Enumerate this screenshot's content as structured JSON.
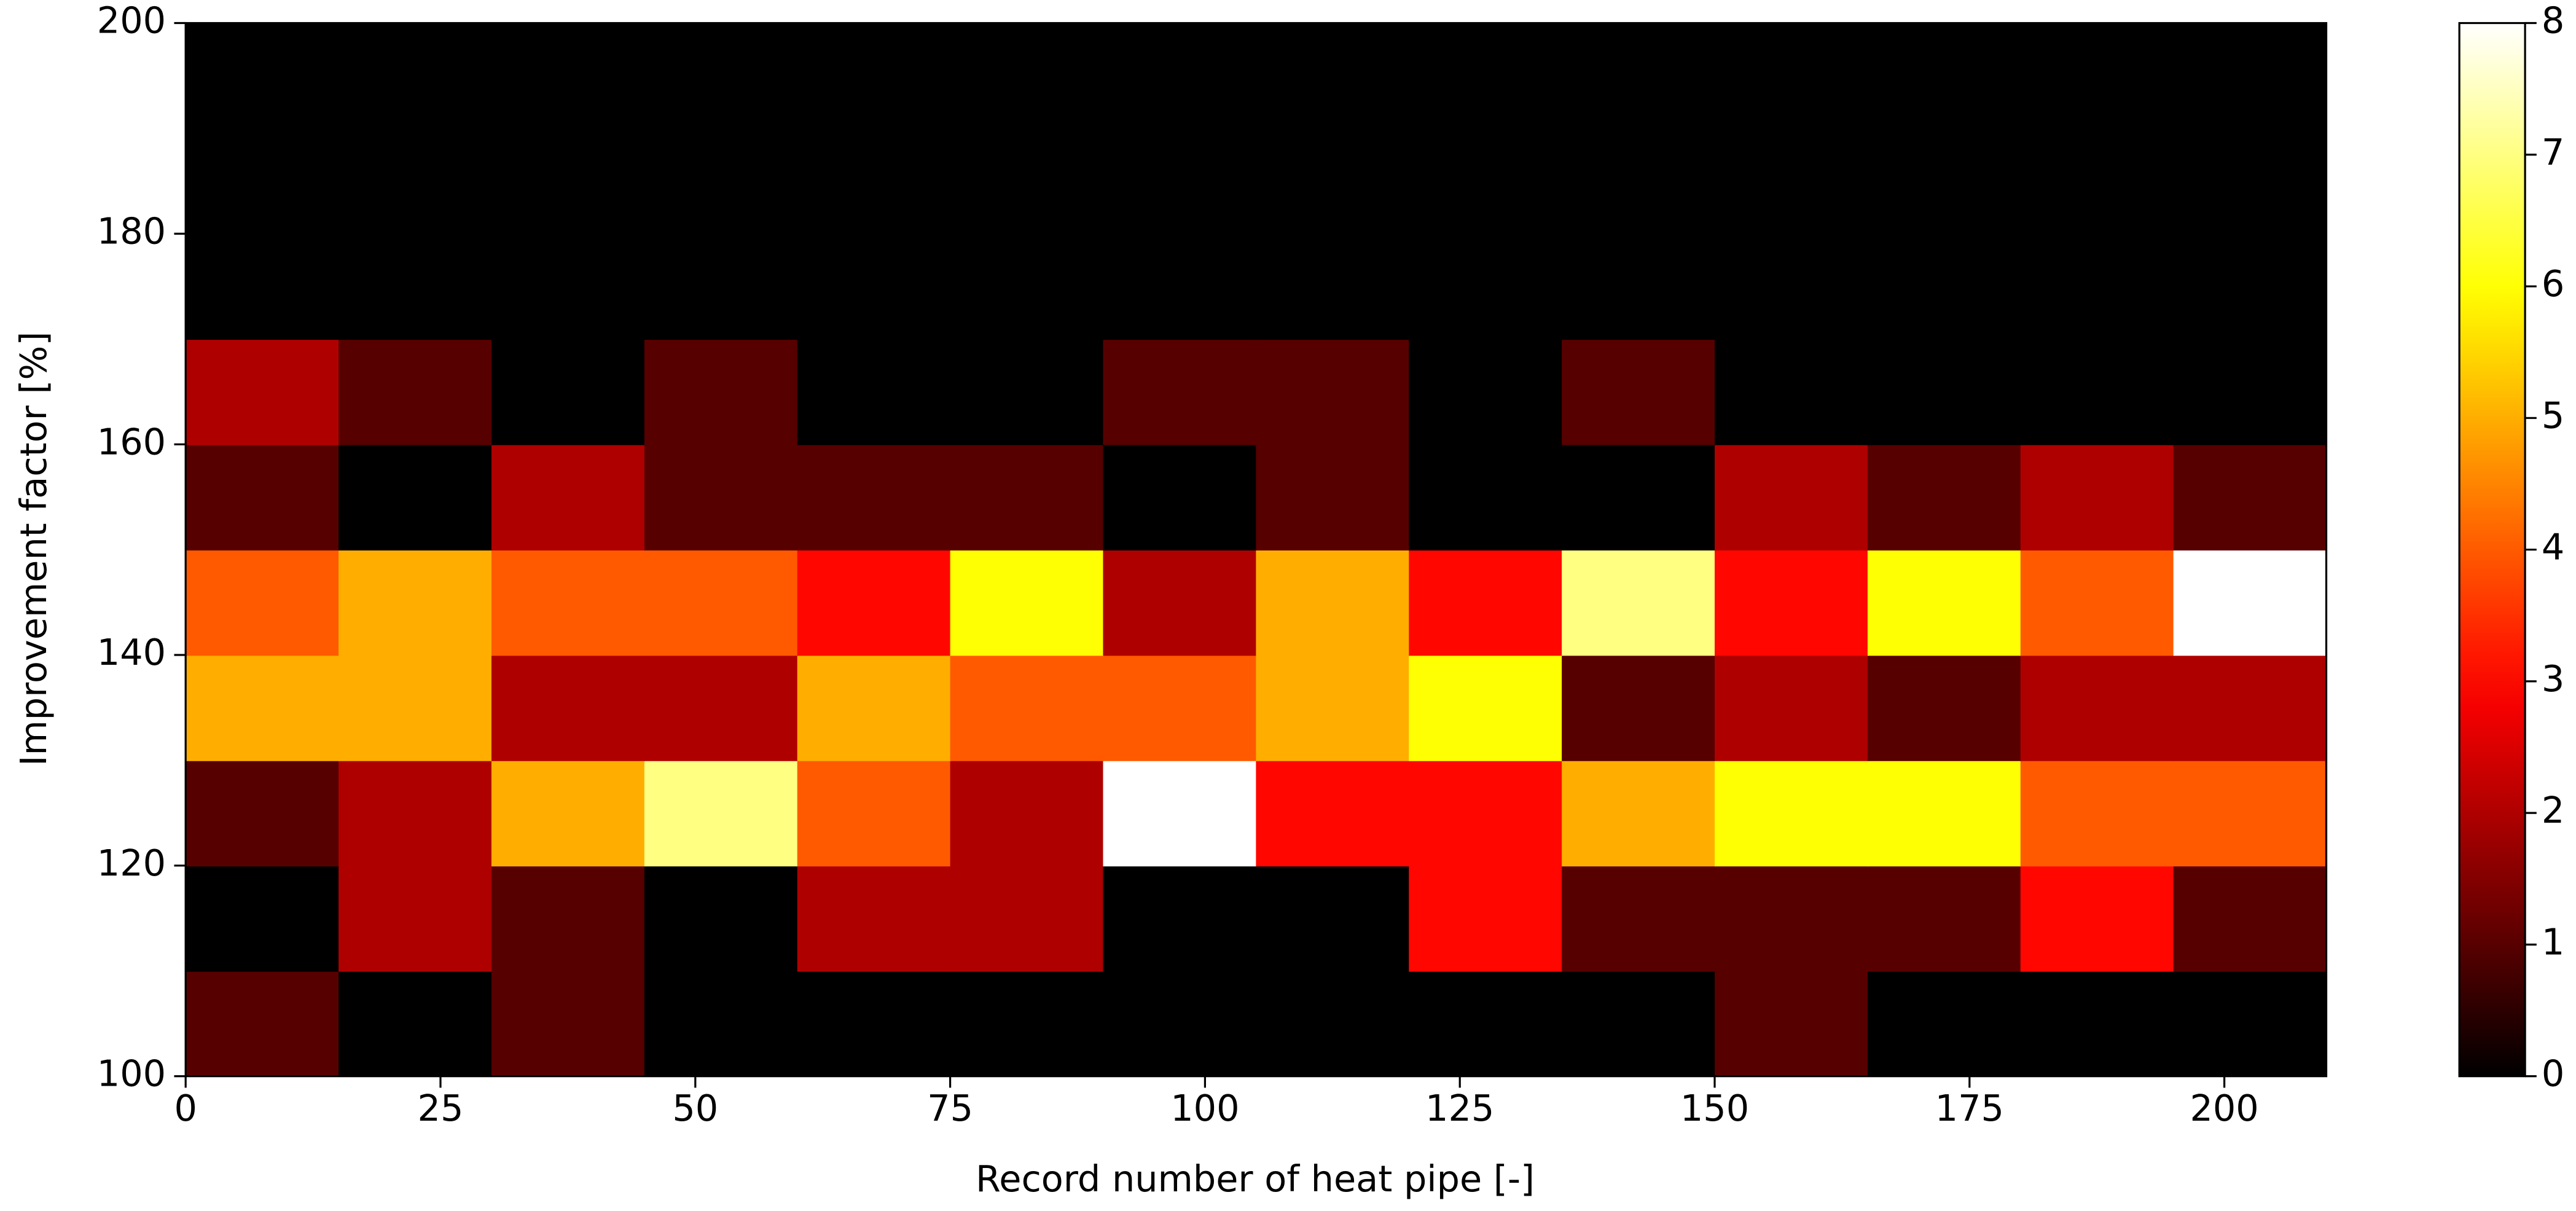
{
  "chart_data": {
    "type": "histogram2d",
    "xlabel": "Record number of heat pipe [-]",
    "ylabel": "Improvement factor [%]",
    "x_bins": [
      0,
      15,
      30,
      45,
      60,
      75,
      90,
      105,
      120,
      135,
      150,
      165,
      180,
      195,
      210
    ],
    "y_bins": [
      100,
      110,
      120,
      130,
      140,
      150,
      160,
      170,
      180,
      190,
      200
    ],
    "values": [
      [
        1,
        0,
        1,
        0,
        0,
        0,
        0,
        0,
        0,
        0,
        1,
        0,
        0,
        0
      ],
      [
        0,
        2,
        1,
        0,
        2,
        2,
        0,
        0,
        3,
        1,
        1,
        1,
        3,
        1
      ],
      [
        1,
        2,
        5,
        7,
        4,
        2,
        8,
        3,
        3,
        5,
        6,
        6,
        4,
        4
      ],
      [
        5,
        5,
        2,
        2,
        5,
        4,
        4,
        5,
        6,
        1,
        2,
        1,
        2,
        2
      ],
      [
        4,
        5,
        4,
        4,
        3,
        6,
        2,
        5,
        3,
        7,
        3,
        6,
        4,
        8
      ],
      [
        1,
        0,
        2,
        1,
        1,
        1,
        0,
        1,
        0,
        0,
        2,
        1,
        2,
        1
      ],
      [
        2,
        1,
        0,
        1,
        0,
        0,
        1,
        1,
        0,
        1,
        0,
        0,
        0,
        0
      ],
      [
        0,
        0,
        0,
        0,
        0,
        0,
        0,
        0,
        0,
        0,
        0,
        0,
        0,
        0
      ],
      [
        0,
        0,
        0,
        0,
        0,
        0,
        0,
        0,
        0,
        0,
        0,
        0,
        0,
        0
      ],
      [
        0,
        0,
        0,
        0,
        0,
        0,
        0,
        0,
        0,
        0,
        0,
        0,
        0,
        0
      ]
    ],
    "xlim": [
      0,
      210
    ],
    "ylim": [
      100,
      200
    ],
    "xticks": [
      0,
      25,
      50,
      75,
      100,
      125,
      150,
      175,
      200
    ],
    "yticks": [
      100,
      120,
      140,
      160,
      180,
      200
    ],
    "colormap": "hot",
    "clim": [
      0,
      8
    ],
    "colorbar_ticks": [
      0,
      1,
      2,
      3,
      4,
      5,
      6,
      7,
      8
    ]
  }
}
